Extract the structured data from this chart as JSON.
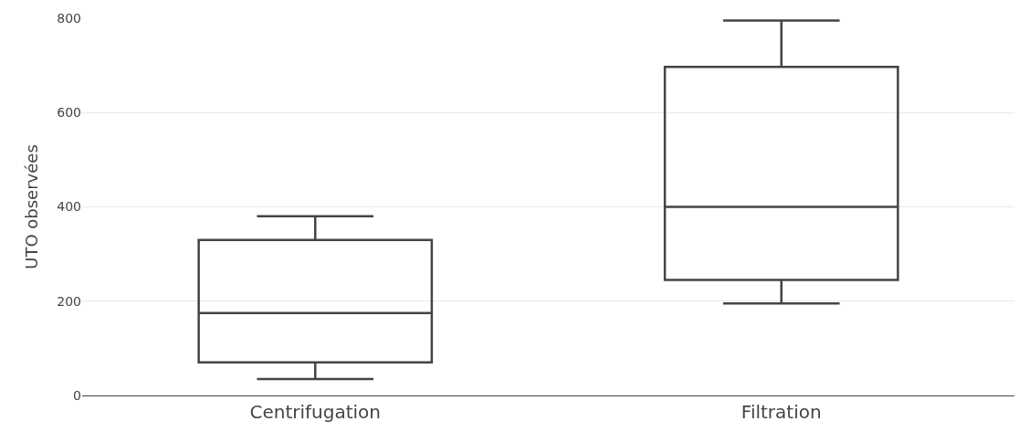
{
  "chart_data": {
    "type": "box",
    "ylabel": "UTO observées",
    "categories": [
      "Centrifugation",
      "Filtration"
    ],
    "boxes": [
      {
        "low": 35,
        "q1": 70,
        "median": 175,
        "q3": 330,
        "high": 380
      },
      {
        "low": 195,
        "q1": 245,
        "median": 400,
        "q3": 697,
        "high": 795
      }
    ],
    "color": "#444444",
    "ylim": [
      0,
      800
    ],
    "yticks": [
      0,
      200,
      400,
      600,
      800
    ],
    "grid": "y"
  }
}
